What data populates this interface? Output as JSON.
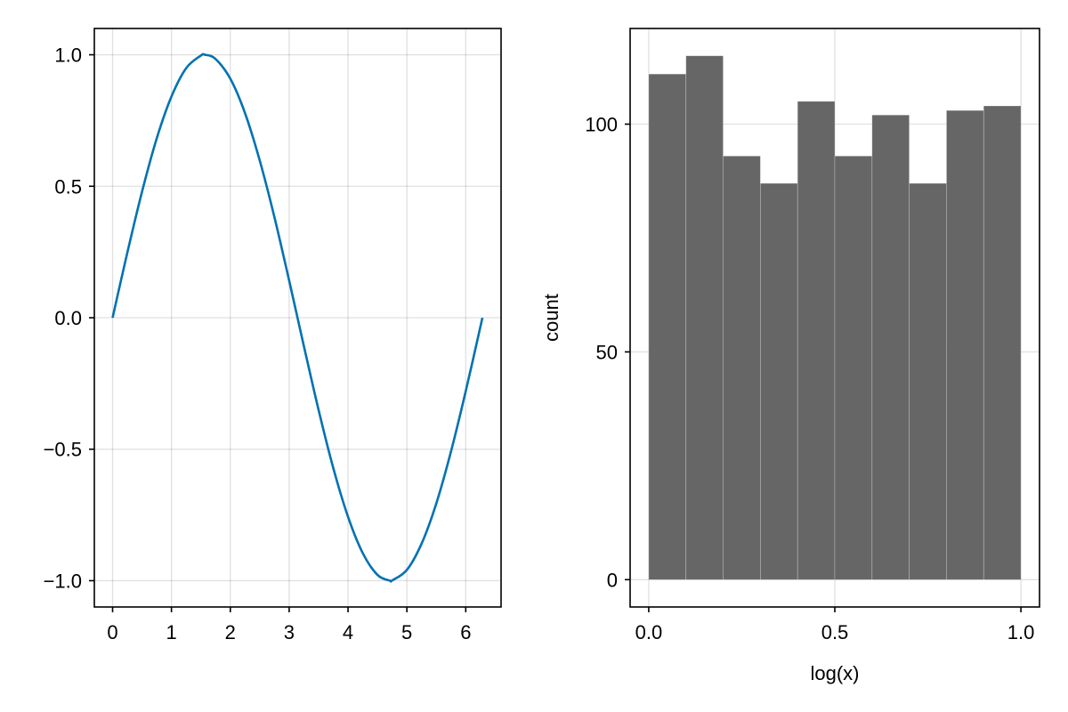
{
  "colors": {
    "line_series": "#0072B2",
    "hist_bars": "#666666"
  },
  "chart_data": [
    {
      "type": "line",
      "title": "",
      "xlabel": "",
      "ylabel": "",
      "xlim": [
        -0.31,
        6.6
      ],
      "ylim": [
        -1.1,
        1.1
      ],
      "x_ticks": [
        0,
        1,
        2,
        3,
        4,
        5,
        6
      ],
      "x_tick_labels": [
        "0",
        "1",
        "2",
        "3",
        "4",
        "5",
        "6"
      ],
      "y_ticks": [
        -1.0,
        -0.5,
        0.0,
        0.5,
        1.0
      ],
      "y_tick_labels": [
        "−1.0",
        "−0.5",
        "0.0",
        "0.5",
        "1.0"
      ],
      "grid": true,
      "series": [
        {
          "x": [
            0.0,
            0.25,
            0.5,
            0.75,
            1.0,
            1.25,
            1.5,
            1.5708,
            1.75,
            2.0,
            2.25,
            2.5,
            2.75,
            3.0,
            3.1416,
            3.25,
            3.5,
            3.75,
            4.0,
            4.25,
            4.5,
            4.7124,
            4.75,
            5.0,
            5.25,
            5.5,
            5.75,
            6.0,
            6.2832
          ],
          "y": [
            0.0,
            0.247,
            0.479,
            0.682,
            0.841,
            0.949,
            0.997,
            1.0,
            0.984,
            0.909,
            0.778,
            0.598,
            0.382,
            0.141,
            0.0,
            -0.108,
            -0.351,
            -0.572,
            -0.757,
            -0.895,
            -0.978,
            -1.0,
            -0.999,
            -0.959,
            -0.859,
            -0.706,
            -0.508,
            -0.279,
            0.0
          ]
        }
      ]
    },
    {
      "type": "bar",
      "title": "",
      "xlabel": "log(x)",
      "ylabel": "count",
      "xlim": [
        -0.05,
        1.05
      ],
      "ylim": [
        -6,
        121
      ],
      "x_ticks": [
        0.0,
        0.5,
        1.0
      ],
      "x_tick_labels": [
        "0.0",
        "0.5",
        "1.0"
      ],
      "y_ticks": [
        0,
        50,
        100
      ],
      "y_tick_labels": [
        "0",
        "50",
        "100"
      ],
      "grid": true,
      "bin_edges": [
        0.0,
        0.1,
        0.2,
        0.3,
        0.4,
        0.5,
        0.6,
        0.7,
        0.8,
        0.9,
        1.0
      ],
      "values": [
        111,
        115,
        93,
        87,
        105,
        93,
        102,
        87,
        103,
        104
      ]
    }
  ]
}
